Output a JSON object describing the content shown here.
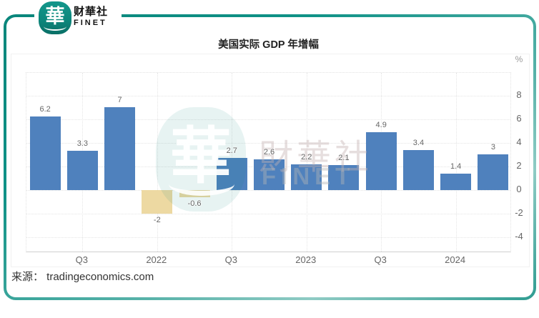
{
  "brand": {
    "logo_glyph": "華",
    "name_zh": "财華社",
    "name_en": "FINET",
    "teal_color": "#0e8b80"
  },
  "header": {
    "title": "美国实际 GDP 年增幅"
  },
  "watermark": {
    "logo_glyph": "華",
    "text_zh": "財華社",
    "text_en": "FINET"
  },
  "source": {
    "text": "来源： tradingeconomics.com"
  },
  "chart_data": {
    "type": "bar",
    "title": "美国实际 GDP 年增幅",
    "unit": "%",
    "values": [
      6.2,
      3.3,
      7,
      -2,
      -0.6,
      2.7,
      2.6,
      2.2,
      2.1,
      4.9,
      3.4,
      1.4,
      3
    ],
    "value_labels": [
      "6.2",
      "3.3",
      "7",
      "-2",
      "-0.6",
      "2.7",
      "2.6",
      "2.2",
      "2.1",
      "4.9",
      "3.4",
      "1.4",
      "3"
    ],
    "x_tick_labels": [
      "Q3",
      "2022",
      "Q3",
      "2023",
      "Q3",
      "2024"
    ],
    "x_tick_slots": [
      1,
      3,
      5,
      7,
      9,
      11
    ],
    "y_ticks": [
      8,
      6,
      4,
      2,
      0,
      -2,
      -4
    ],
    "ylim": [
      -5.3,
      9.9
    ],
    "positive_color": "#4f81bd",
    "negative_color": "#edd9a2",
    "grid": "dotted",
    "legend": "none"
  }
}
